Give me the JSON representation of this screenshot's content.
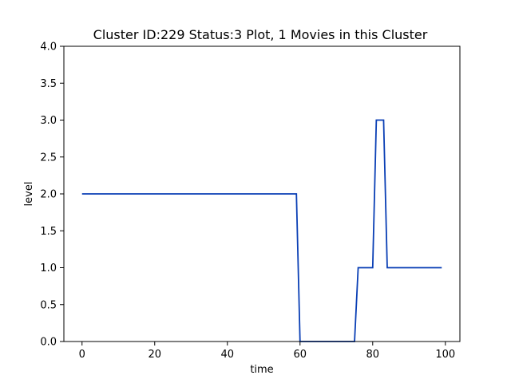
{
  "chart_data": {
    "type": "line",
    "title": "Cluster ID:229 Status:3 Plot, 1 Movies in this Cluster",
    "xlabel": "time",
    "ylabel": "level",
    "xlim": [
      -5,
      104
    ],
    "ylim": [
      0,
      4
    ],
    "xticks": [
      0,
      20,
      40,
      60,
      80,
      100
    ],
    "yticks": [
      0.0,
      0.5,
      1.0,
      1.5,
      2.0,
      2.5,
      3.0,
      3.5,
      4.0
    ],
    "xtick_labels": [
      "0",
      "20",
      "40",
      "60",
      "80",
      "100"
    ],
    "ytick_labels": [
      "0.0",
      "0.5",
      "1.0",
      "1.5",
      "2.0",
      "2.5",
      "3.0",
      "3.5",
      "4.0"
    ],
    "grid": false,
    "series": [
      {
        "color": "#0a3fb5",
        "x": [
          0,
          59,
          60,
          75,
          76,
          80,
          81,
          83,
          84,
          99
        ],
        "y": [
          2,
          2,
          0,
          0,
          1,
          1,
          3,
          3,
          1,
          1
        ]
      }
    ]
  }
}
